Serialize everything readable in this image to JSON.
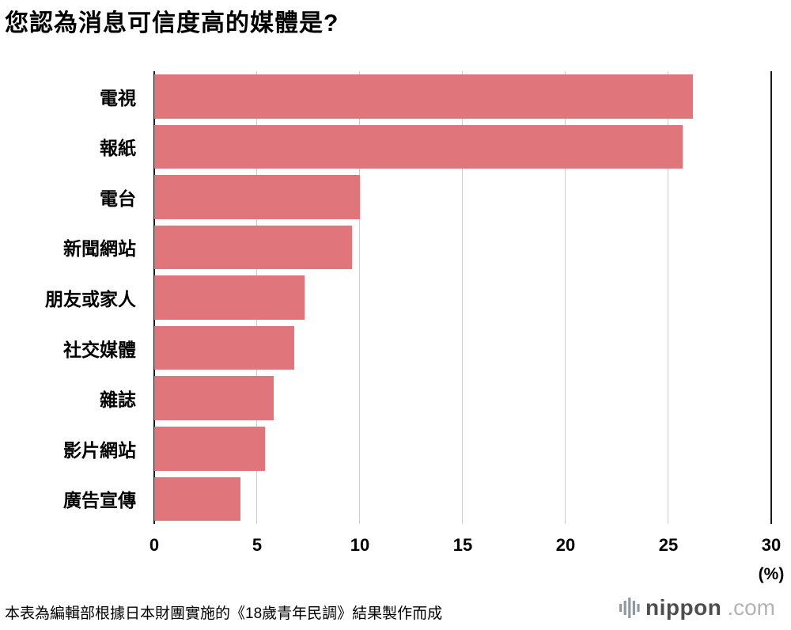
{
  "title": "您認為消息可信度高的媒體是?",
  "footer": "本表為編輯部根據日本財團實施的《18歲青年民調》結果製作而成",
  "logo": {
    "name": "nippon",
    "tld": ".com"
  },
  "colors": {
    "bar": "#e0757b",
    "grid": "#cccccc",
    "axis": "#1a1a1a"
  },
  "chart_data": {
    "type": "bar",
    "orientation": "horizontal",
    "title": "您認為消息可信度高的媒體是?",
    "categories": [
      "電視",
      "報紙",
      "電台",
      "新聞網站",
      "朋友或家人",
      "社交媒體",
      "雜誌",
      "影片網站",
      "廣告宣傳"
    ],
    "values": [
      26.2,
      25.7,
      10.0,
      9.6,
      7.3,
      6.8,
      5.8,
      5.4,
      4.2
    ],
    "xlabel": "(%)",
    "ylabel": "",
    "xlim": [
      0,
      30
    ],
    "xticks": [
      0,
      5,
      10,
      15,
      20,
      25,
      30
    ],
    "grid": true,
    "legend": false
  }
}
